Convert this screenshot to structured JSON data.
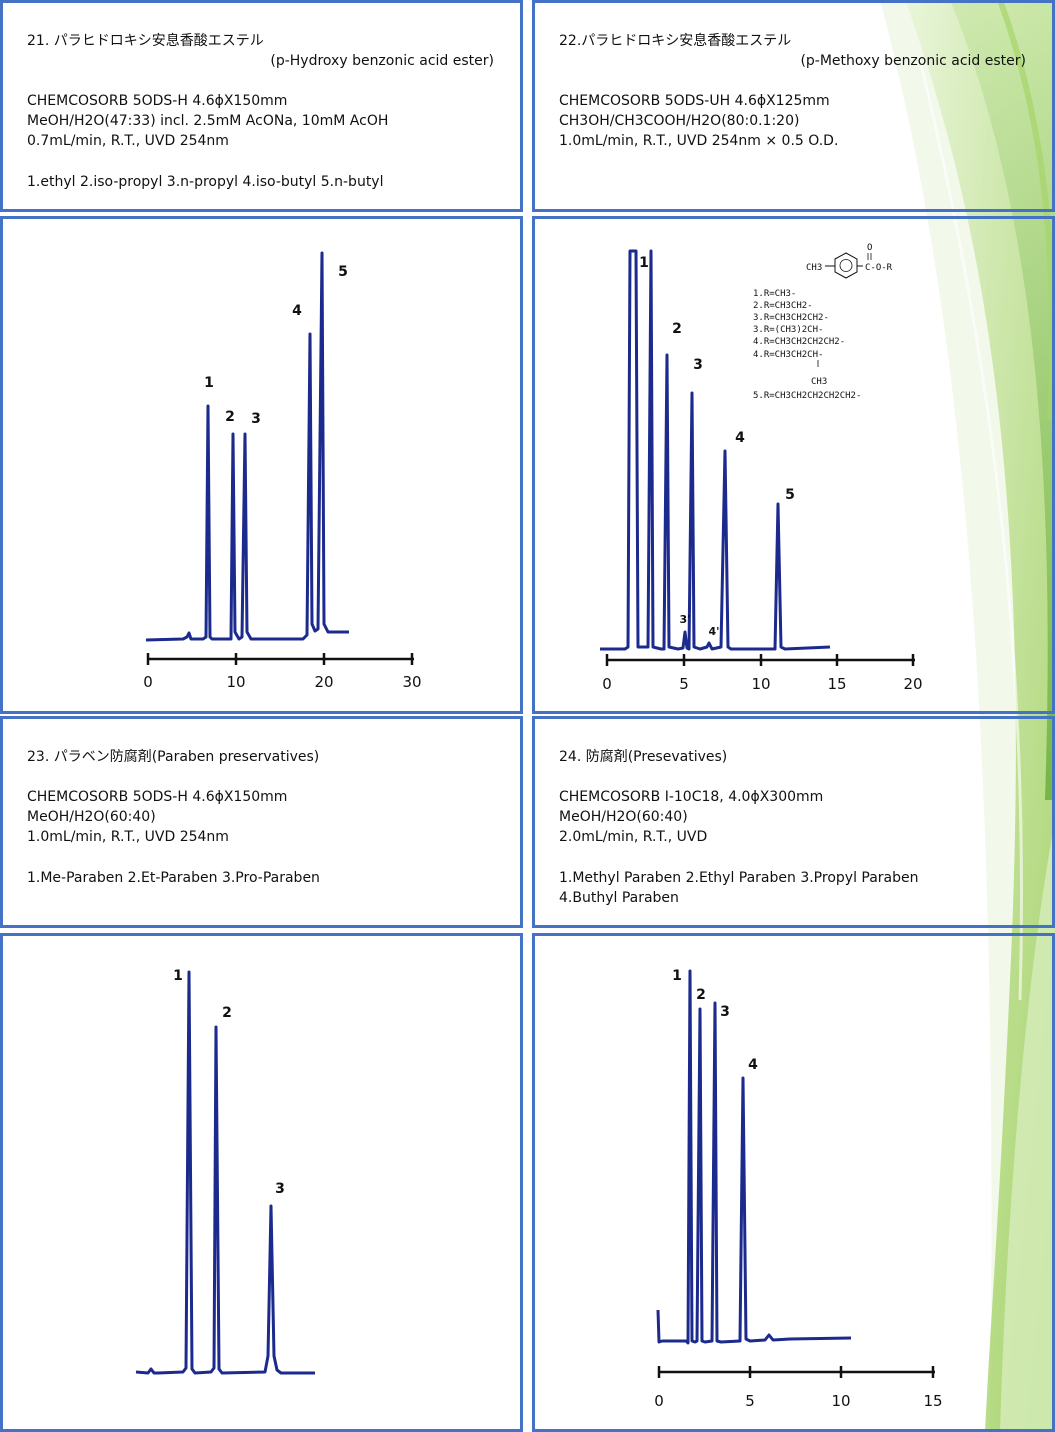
{
  "panels": {
    "p21": {
      "title": "21. パラヒドロキシ安息香酸エステル",
      "subtitle": "(p-Hydroxy benzonic acid ester)",
      "lines": [
        "CHEMCOSORB 5ODS-H 4.6ϕX150mm",
        "MeOH/H2O(47:33) incl. 2.5mM AcONa, 10mM AcOH",
        "0.7mL/min, R.T., UVD 254nm",
        "1.ethyl 2.iso-propyl 3.n-propyl 4.iso-butyl 5.n-butyl"
      ]
    },
    "p22": {
      "title": "22.パラヒドロキシ安息香酸エステル",
      "subtitle": "(p-Methoxy benzonic acid ester)",
      "lines": [
        "CHEMCOSORB 5ODS-UH 4.6ϕX125mm",
        "CH3OH/CH3COOH/H2O(80:0.1:20)",
        "1.0mL/min, R.T., UVD 254nm × 0.5 O.D."
      ]
    },
    "p23": {
      "title": "23. パラベン防腐剤(Paraben preservatives)",
      "lines": [
        "CHEMCOSORB 5ODS-H 4.6ϕX150mm",
        "MeOH/H2O(60:40)",
        "1.0mL/min, R.T., UVD 254nm",
        "1.Me-Paraben 2.Et-Paraben 3.Pro-Paraben"
      ]
    },
    "p24": {
      "title": "24. 防腐剤(Presevatives)",
      "lines": [
        "CHEMCOSORB I-10C18, 4.0ϕX300mm",
        "MeOH/H2O(60:40)",
        "2.0mL/min, R.T., UVD",
        "1.Methyl Paraben 2.Ethyl Paraben 3.Propyl Paraben",
        "4.Buthyl Paraben"
      ]
    }
  },
  "structure": {
    "substituent": "CH3",
    "carbonyl_o": "O",
    "ester": "C-O-R",
    "r_list": [
      "1.R=CH3-",
      "2.R=CH3CH2-",
      "3.R=CH3CH2CH2-",
      "3.R=(CH3)2CH-",
      "4.R=CH3CH2CH2CH2-",
      "4.R=CH3CH2CH-",
      "CH3",
      "5.R=CH3CH2CH2CH2CH2-"
    ]
  },
  "chart_data": [
    {
      "type": "line",
      "id": "chrom21",
      "x_ticks": [
        "0",
        "10",
        "20",
        "30"
      ],
      "xlim": [
        0,
        30
      ],
      "peaks": [
        {
          "label": "1",
          "rt": 7.0,
          "height": 0.6
        },
        {
          "label": "2",
          "rt": 9.8,
          "height": 0.53
        },
        {
          "label": "3",
          "rt": 11.1,
          "height": 0.53
        },
        {
          "label": "4",
          "rt": 18.4,
          "height": 0.8
        },
        {
          "label": "5",
          "rt": 19.6,
          "height": 1.0
        }
      ]
    },
    {
      "type": "line",
      "id": "chrom22",
      "x_ticks": [
        "0",
        "5",
        "10",
        "15",
        "20"
      ],
      "xlim": [
        0,
        20
      ],
      "peaks": [
        {
          "label": "1",
          "rt": 3.1,
          "height": 1.0
        },
        {
          "label": "2",
          "rt": 4.1,
          "height": 0.74
        },
        {
          "label": "3'",
          "rt": 5.0,
          "height": 0.04
        },
        {
          "label": "3",
          "rt": 5.5,
          "height": 0.66
        },
        {
          "label": "4'",
          "rt": 6.9,
          "height": 0.02
        },
        {
          "label": "4",
          "rt": 7.8,
          "height": 0.5
        },
        {
          "label": "5",
          "rt": 11.3,
          "height": 0.36
        }
      ]
    },
    {
      "type": "line",
      "id": "chrom23",
      "x_ticks": [],
      "peaks": [
        {
          "label": "1",
          "height": 1.0
        },
        {
          "label": "2",
          "height": 0.85
        },
        {
          "label": "3",
          "height": 0.41
        }
      ]
    },
    {
      "type": "line",
      "id": "chrom24",
      "x_ticks": [
        "0",
        "5",
        "10",
        "15"
      ],
      "xlim": [
        0,
        15
      ],
      "peaks": [
        {
          "label": "1",
          "rt": 1.7,
          "height": 1.0
        },
        {
          "label": "2",
          "rt": 2.2,
          "height": 0.9
        },
        {
          "label": "3",
          "rt": 3.0,
          "height": 0.91
        },
        {
          "label": "4",
          "rt": 4.7,
          "height": 0.7
        }
      ]
    }
  ]
}
